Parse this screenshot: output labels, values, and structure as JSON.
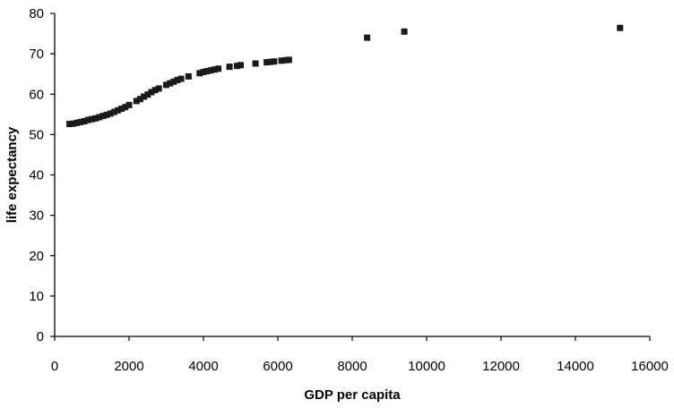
{
  "chart_data": {
    "type": "scatter",
    "title": "",
    "xlabel": "GDP per capita",
    "ylabel": "life expectancy",
    "xlim": [
      0,
      16000
    ],
    "ylim": [
      0,
      80
    ],
    "x_ticks": [
      "0",
      "2000",
      "4000",
      "6000",
      "8000",
      "10000",
      "12000",
      "14000",
      "16000"
    ],
    "y_ticks": [
      "0",
      "10",
      "20",
      "30",
      "40",
      "50",
      "60",
      "70",
      "80"
    ],
    "grid": false,
    "legend": "none",
    "marker_color": "#1a1a1a",
    "series": [
      {
        "x": [
          400,
          500,
          600,
          700,
          800,
          900,
          1000,
          1100,
          1200,
          1300,
          1400,
          1500,
          1600,
          1700,
          1800,
          1900,
          2000,
          2200,
          2300,
          2400,
          2500,
          2600,
          2700,
          2800,
          3000,
          3100,
          3200,
          3300,
          3400,
          3600,
          3900,
          4000,
          4100,
          4200,
          4300,
          4400,
          4700,
          4900,
          5000,
          5400,
          5700,
          5800,
          5900,
          6100,
          6200,
          6300,
          8400,
          9400,
          15200
        ],
        "y": [
          52.6,
          52.7,
          52.9,
          53.1,
          53.3,
          53.6,
          53.8,
          54.0,
          54.3,
          54.6,
          54.9,
          55.2,
          55.6,
          56.0,
          56.4,
          56.8,
          57.3,
          58.3,
          58.8,
          59.4,
          59.9,
          60.5,
          61.0,
          61.4,
          62.3,
          62.7,
          63.1,
          63.5,
          63.8,
          64.4,
          65.2,
          65.5,
          65.7,
          65.9,
          66.1,
          66.3,
          66.8,
          67.0,
          67.2,
          67.6,
          67.9,
          68.0,
          68.1,
          68.3,
          68.4,
          68.5,
          74.0,
          75.5,
          76.4
        ]
      }
    ]
  }
}
